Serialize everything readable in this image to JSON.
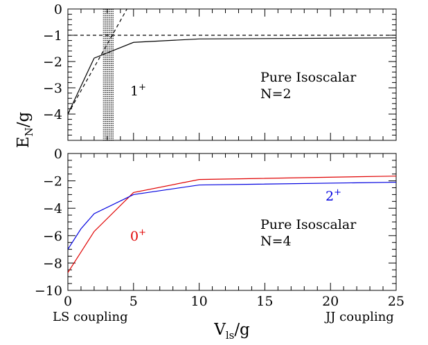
{
  "chart_data": [
    {
      "type": "line",
      "title": "",
      "xlabel": "V_ls/g",
      "ylabel": "E_N/g",
      "xlim": [
        0,
        25
      ],
      "ylim": [
        -5,
        0
      ],
      "xticks": [
        0,
        5,
        10,
        15,
        20,
        25
      ],
      "yticks": [
        0,
        -1,
        -2,
        -3,
        -4
      ],
      "ytick_labels": [
        "0",
        "−1",
        "−2",
        "−3",
        "−4"
      ],
      "grid": false,
      "annotations": {
        "state_label": "1",
        "state_parity": "+",
        "description_line1": "Pure Isoscalar",
        "description_line2": "N=2"
      },
      "series": [
        {
          "style": "solid",
          "color": "#000000",
          "x": [
            0,
            2,
            5,
            10,
            25
          ],
          "y": [
            -4.0,
            -1.87,
            -1.27,
            -1.14,
            -1.1
          ]
        },
        {
          "style": "dashed",
          "color": "#000000",
          "x": [
            0,
            4.5
          ],
          "y": [
            -4.0,
            0.0
          ]
        },
        {
          "style": "dashed",
          "color": "#000000",
          "x": [
            0,
            25
          ],
          "y": [
            -1.0,
            -1.0
          ]
        }
      ],
      "shaded_band": {
        "x_range": [
          2.7,
          3.5
        ],
        "pattern": "dotted vertical lines"
      }
    },
    {
      "type": "line",
      "title": "",
      "xlabel": "V_ls/g",
      "ylabel": "E_N/g",
      "xlim": [
        0,
        25
      ],
      "ylim": [
        -10,
        0
      ],
      "xticks": [
        0,
        5,
        10,
        15,
        20,
        25
      ],
      "xtick_labels": [
        "0",
        "5",
        "10",
        "15",
        "20",
        "25"
      ],
      "yticks": [
        0,
        -2,
        -4,
        -6,
        -8,
        -10
      ],
      "ytick_labels": [
        "0",
        "−2",
        "−4",
        "−6",
        "−8",
        "−10"
      ],
      "grid": false,
      "annotations": {
        "description_line1": "Pure Isoscalar",
        "description_line2": "N=4"
      },
      "series": [
        {
          "name": "0+",
          "label": "0",
          "parity": "+",
          "color": "#e00000",
          "x": [
            0,
            1,
            2,
            5,
            10,
            25
          ],
          "y": [
            -8.7,
            -7.2,
            -5.7,
            -2.85,
            -1.9,
            -1.65
          ]
        },
        {
          "name": "2+",
          "label": "2",
          "parity": "+",
          "color": "#0000e0",
          "x": [
            0,
            1,
            2,
            5,
            10,
            25
          ],
          "y": [
            -7.0,
            -5.5,
            -4.4,
            -3.0,
            -2.3,
            -2.1
          ]
        }
      ]
    }
  ],
  "ylabel_main": "E",
  "ylabel_sub": "N",
  "ylabel_tail": "/g",
  "xlabel_main": "V",
  "xlabel_sub": "ls",
  "xlabel_tail": "/g",
  "left_caption": "LS coupling",
  "right_caption": "JJ coupling"
}
